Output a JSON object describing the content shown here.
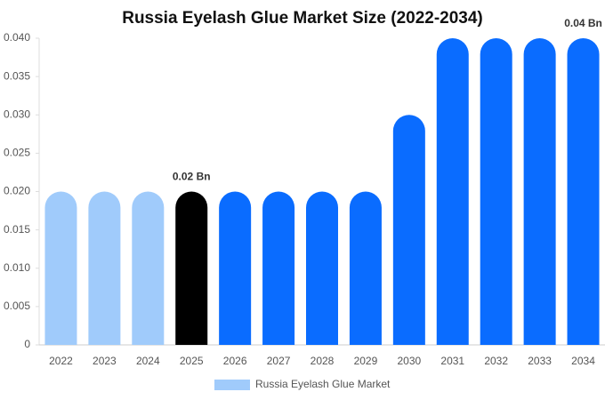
{
  "chart_data": {
    "type": "bar",
    "title": "Russia Eyelash Glue Market Size (2022-2034)",
    "categories": [
      "2022",
      "2023",
      "2024",
      "2025",
      "2026",
      "2027",
      "2028",
      "2029",
      "2030",
      "2031",
      "2032",
      "2033",
      "2034"
    ],
    "series": [
      {
        "name": "Russia Eyelash Glue Market",
        "color": "#a0cbfb",
        "values": [
          0.02,
          0.02,
          0.02,
          0.02,
          0.02,
          0.02,
          0.02,
          0.02,
          0.03,
          0.04,
          0.04,
          0.04,
          0.04
        ],
        "value_labels": [
          null,
          null,
          null,
          "0.02 Bn",
          null,
          null,
          null,
          null,
          null,
          null,
          null,
          null,
          "0.04 Bn"
        ],
        "bar_colors": [
          "#a0cbfb",
          "#a0cbfb",
          "#a0cbfb",
          "#000000",
          "#0a6cff",
          "#0a6cff",
          "#0a6cff",
          "#0a6cff",
          "#0a6cff",
          "#0a6cff",
          "#0a6cff",
          "#0a6cff",
          "#0a6cff"
        ]
      }
    ],
    "ylim": [
      0,
      0.04
    ],
    "yticks": [
      0,
      0.005,
      {
        "value": 0.01,
        "label": "0.010"
      },
      0.015,
      {
        "value": 0.02,
        "label": "0.020"
      },
      0.025,
      {
        "value": 0.03,
        "label": "0.030"
      },
      0.035,
      {
        "value": 0.04,
        "label": "0.040"
      }
    ],
    "grid": false,
    "legend": "bottom"
  }
}
